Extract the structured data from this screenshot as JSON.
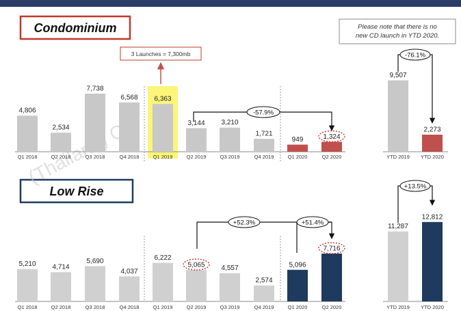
{
  "chart_data": [
    {
      "type": "bar",
      "title": "Condominium",
      "note": [
        "Please note that there is no",
        "new CD launch in YTD 2020."
      ],
      "categories": [
        "Q1 2018",
        "Q2 2018",
        "Q3 2018",
        "Q4 2018",
        "Q1 2019",
        "Q2 2019",
        "Q3 2019",
        "Q4 2019",
        "Q1 2020",
        "Q2 2020"
      ],
      "values": [
        4806,
        2534,
        7738,
        6568,
        6363,
        3144,
        3210,
        1721,
        949,
        1324
      ],
      "value_labels": [
        "4,806",
        "2,534",
        "7,738",
        "6,568",
        "6,363",
        "3,144",
        "3,210",
        "1,721",
        "949",
        "1,324"
      ],
      "ytd_categories": [
        "YTD 2019",
        "YTD 2020"
      ],
      "ytd_values": [
        9507,
        2273
      ],
      "ytd_value_labels": [
        "9,507",
        "2,273"
      ],
      "callout": "3 Launches = 7,300mb",
      "annotations": {
        "q2_change": "-57.9%",
        "ytd_change": "-76.1%"
      },
      "colors": {
        "default": "#c8c8c8",
        "highlight": "#c0504d",
        "highlight_bg": "#fbf57a"
      }
    },
    {
      "type": "bar",
      "title": "Low Rise",
      "categories": [
        "Q1 2018",
        "Q2 2018",
        "Q3 2018",
        "Q4 2018",
        "Q1 2019",
        "Q2 2019",
        "Q3 2019",
        "Q4 2019",
        "Q1 2020",
        "Q2 2020"
      ],
      "values": [
        5210,
        4714,
        5690,
        4037,
        6222,
        5065,
        4557,
        2574,
        5096,
        7716
      ],
      "value_labels": [
        "5,210",
        "4,714",
        "5,690",
        "4,037",
        "6,222",
        "5,065",
        "4,557",
        "2,574",
        "5,096",
        "7,716"
      ],
      "ytd_categories": [
        "YTD 2019",
        "YTD 2020"
      ],
      "ytd_values": [
        11287,
        12812
      ],
      "ytd_value_labels": [
        "11,287",
        "12,812"
      ],
      "annotations": {
        "yoy_change": "+52.3%",
        "qoq_change": "+51.4%",
        "ytd_change": "+13.5%"
      },
      "colors": {
        "default": "#d0d0d0",
        "highlight": "#1f3a5f"
      }
    }
  ],
  "watermark": "(Thailand) Co."
}
